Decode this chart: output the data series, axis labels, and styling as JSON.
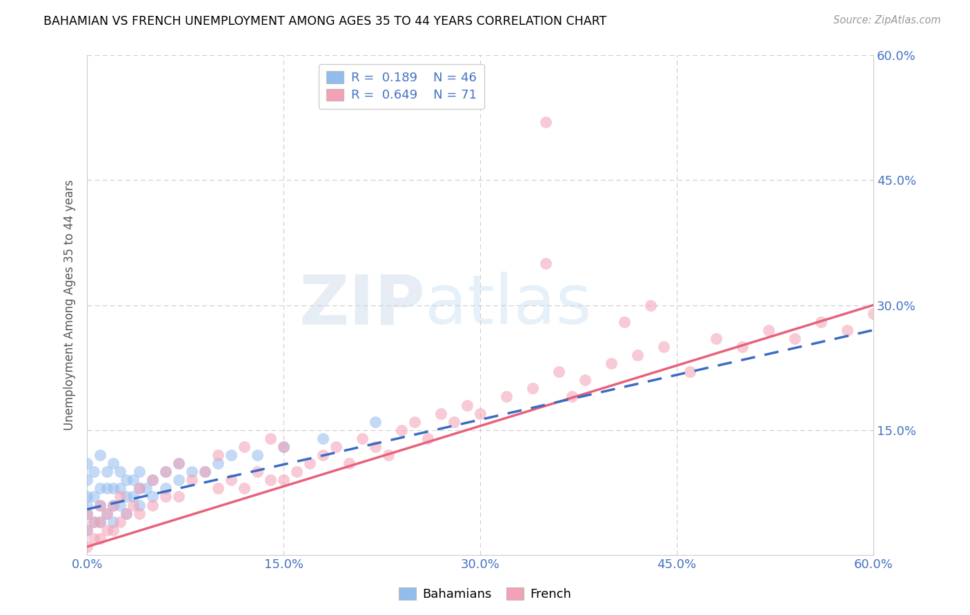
{
  "title": "BAHAMIAN VS FRENCH UNEMPLOYMENT AMONG AGES 35 TO 44 YEARS CORRELATION CHART",
  "source": "Source: ZipAtlas.com",
  "ylabel": "Unemployment Among Ages 35 to 44 years",
  "xlim": [
    0,
    0.6
  ],
  "ylim": [
    0,
    0.6
  ],
  "xtick_labels": [
    "0.0%",
    "15.0%",
    "30.0%",
    "45.0%",
    "60.0%"
  ],
  "xtick_vals": [
    0.0,
    0.15,
    0.3,
    0.45,
    0.6
  ],
  "ytick_labels_right": [
    "60.0%",
    "45.0%",
    "30.0%",
    "15.0%"
  ],
  "ytick_vals_right": [
    0.6,
    0.45,
    0.3,
    0.15
  ],
  "legend_labels": [
    "Bahamians",
    "French"
  ],
  "legend_R": [
    0.189,
    0.649
  ],
  "legend_N": [
    46,
    71
  ],
  "bahamian_color": "#92bbee",
  "french_color": "#f4a0b5",
  "bahamian_line_color": "#3a6bc4",
  "french_line_color": "#e8607a",
  "grid_color": "#cccccc",
  "bah_line_x0": 0.0,
  "bah_line_y0": 0.055,
  "bah_line_x1": 0.6,
  "bah_line_y1": 0.27,
  "fr_line_x0": 0.0,
  "fr_line_y0": 0.01,
  "fr_line_x1": 0.6,
  "fr_line_y1": 0.3,
  "bahamian_x": [
    0.0,
    0.0,
    0.0,
    0.0,
    0.0,
    0.0,
    0.005,
    0.005,
    0.005,
    0.01,
    0.01,
    0.01,
    0.01,
    0.015,
    0.015,
    0.015,
    0.02,
    0.02,
    0.02,
    0.02,
    0.025,
    0.025,
    0.025,
    0.03,
    0.03,
    0.03,
    0.035,
    0.035,
    0.04,
    0.04,
    0.04,
    0.045,
    0.05,
    0.05,
    0.06,
    0.06,
    0.07,
    0.07,
    0.08,
    0.09,
    0.1,
    0.11,
    0.13,
    0.15,
    0.18,
    0.22
  ],
  "bahamian_y": [
    0.03,
    0.05,
    0.06,
    0.07,
    0.09,
    0.11,
    0.04,
    0.07,
    0.1,
    0.04,
    0.06,
    0.08,
    0.12,
    0.05,
    0.08,
    0.1,
    0.04,
    0.06,
    0.08,
    0.11,
    0.06,
    0.08,
    0.1,
    0.05,
    0.07,
    0.09,
    0.07,
    0.09,
    0.06,
    0.08,
    0.1,
    0.08,
    0.07,
    0.09,
    0.08,
    0.1,
    0.09,
    0.11,
    0.1,
    0.1,
    0.11,
    0.12,
    0.12,
    0.13,
    0.14,
    0.16
  ],
  "french_x": [
    0.0,
    0.0,
    0.0,
    0.005,
    0.005,
    0.01,
    0.01,
    0.01,
    0.015,
    0.015,
    0.02,
    0.02,
    0.025,
    0.025,
    0.03,
    0.035,
    0.04,
    0.04,
    0.05,
    0.05,
    0.06,
    0.06,
    0.07,
    0.07,
    0.08,
    0.09,
    0.1,
    0.1,
    0.11,
    0.12,
    0.12,
    0.13,
    0.14,
    0.14,
    0.15,
    0.15,
    0.16,
    0.17,
    0.18,
    0.19,
    0.2,
    0.21,
    0.22,
    0.23,
    0.24,
    0.25,
    0.26,
    0.27,
    0.28,
    0.29,
    0.3,
    0.32,
    0.34,
    0.35,
    0.36,
    0.38,
    0.4,
    0.42,
    0.44,
    0.46,
    0.48,
    0.5,
    0.52,
    0.54,
    0.56,
    0.58,
    0.6,
    0.35,
    0.37,
    0.41,
    0.43
  ],
  "french_y": [
    0.01,
    0.03,
    0.05,
    0.02,
    0.04,
    0.02,
    0.04,
    0.06,
    0.03,
    0.05,
    0.03,
    0.06,
    0.04,
    0.07,
    0.05,
    0.06,
    0.05,
    0.08,
    0.06,
    0.09,
    0.07,
    0.1,
    0.07,
    0.11,
    0.09,
    0.1,
    0.08,
    0.12,
    0.09,
    0.08,
    0.13,
    0.1,
    0.09,
    0.14,
    0.09,
    0.13,
    0.1,
    0.11,
    0.12,
    0.13,
    0.11,
    0.14,
    0.13,
    0.12,
    0.15,
    0.16,
    0.14,
    0.17,
    0.16,
    0.18,
    0.17,
    0.19,
    0.2,
    0.52,
    0.22,
    0.21,
    0.23,
    0.24,
    0.25,
    0.22,
    0.26,
    0.25,
    0.27,
    0.26,
    0.28,
    0.27,
    0.29,
    0.35,
    0.19,
    0.28,
    0.3
  ]
}
